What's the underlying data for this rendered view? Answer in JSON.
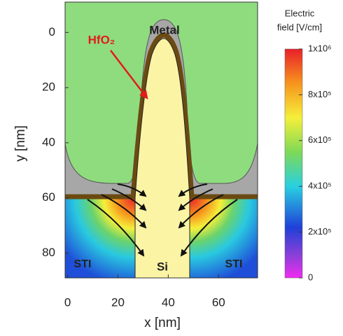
{
  "chart_data": {
    "type": "field",
    "xlabel": "x [nm]",
    "ylabel": "y [nm]",
    "xlim": [
      -1,
      75.5
    ],
    "ylim": [
      89,
      -11
    ],
    "xticks": [
      0,
      20,
      40,
      60
    ],
    "yticks": [
      0,
      20,
      40,
      60,
      80
    ],
    "colorbar": {
      "label": [
        "Electric",
        "field [V/cm]"
      ],
      "lim": [
        0,
        1000000
      ],
      "ticks": [
        0,
        {
          "value": 200000,
          "label": "2x10⁵"
        },
        {
          "value": 400000,
          "label": "4x10⁵"
        },
        {
          "value": 600000,
          "label": "6x10⁵"
        },
        {
          "value": 800000,
          "label": "8x10⁵"
        },
        {
          "value": 1000000,
          "label": "1x10⁶"
        }
      ]
    },
    "annotations": [
      "Metal",
      "HfO₂",
      "Si",
      "STI",
      "STI"
    ]
  }
}
